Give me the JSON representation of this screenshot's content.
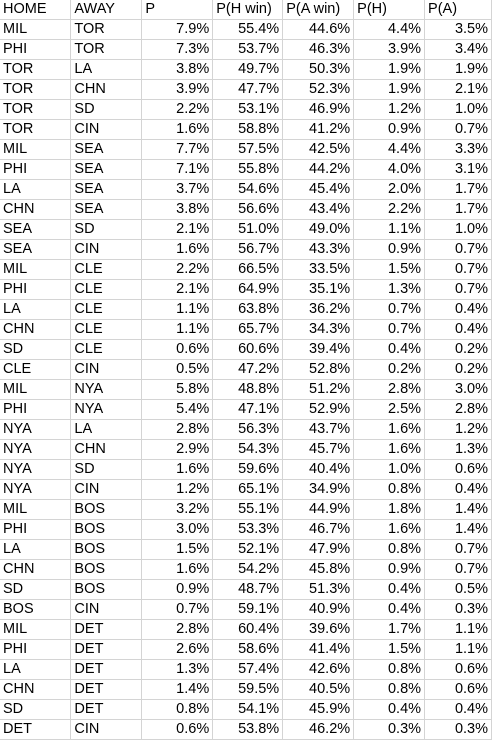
{
  "headers": [
    "HOME",
    "AWAY",
    "P",
    "P(H win)",
    "P(A win)",
    "P(H)",
    "P(A)"
  ],
  "rows": [
    [
      "MIL",
      "TOR",
      "7.9%",
      "55.4%",
      "44.6%",
      "4.4%",
      "3.5%"
    ],
    [
      "PHI",
      "TOR",
      "7.3%",
      "53.7%",
      "46.3%",
      "3.9%",
      "3.4%"
    ],
    [
      "TOR",
      "LA",
      "3.8%",
      "49.7%",
      "50.3%",
      "1.9%",
      "1.9%"
    ],
    [
      "TOR",
      "CHN",
      "3.9%",
      "47.7%",
      "52.3%",
      "1.9%",
      "2.1%"
    ],
    [
      "TOR",
      "SD",
      "2.2%",
      "53.1%",
      "46.9%",
      "1.2%",
      "1.0%"
    ],
    [
      "TOR",
      "CIN",
      "1.6%",
      "58.8%",
      "41.2%",
      "0.9%",
      "0.7%"
    ],
    [
      "MIL",
      "SEA",
      "7.7%",
      "57.5%",
      "42.5%",
      "4.4%",
      "3.3%"
    ],
    [
      "PHI",
      "SEA",
      "7.1%",
      "55.8%",
      "44.2%",
      "4.0%",
      "3.1%"
    ],
    [
      "LA",
      "SEA",
      "3.7%",
      "54.6%",
      "45.4%",
      "2.0%",
      "1.7%"
    ],
    [
      "CHN",
      "SEA",
      "3.8%",
      "56.6%",
      "43.4%",
      "2.2%",
      "1.7%"
    ],
    [
      "SEA",
      "SD",
      "2.1%",
      "51.0%",
      "49.0%",
      "1.1%",
      "1.0%"
    ],
    [
      "SEA",
      "CIN",
      "1.6%",
      "56.7%",
      "43.3%",
      "0.9%",
      "0.7%"
    ],
    [
      "MIL",
      "CLE",
      "2.2%",
      "66.5%",
      "33.5%",
      "1.5%",
      "0.7%"
    ],
    [
      "PHI",
      "CLE",
      "2.1%",
      "64.9%",
      "35.1%",
      "1.3%",
      "0.7%"
    ],
    [
      "LA",
      "CLE",
      "1.1%",
      "63.8%",
      "36.2%",
      "0.7%",
      "0.4%"
    ],
    [
      "CHN",
      "CLE",
      "1.1%",
      "65.7%",
      "34.3%",
      "0.7%",
      "0.4%"
    ],
    [
      "SD",
      "CLE",
      "0.6%",
      "60.6%",
      "39.4%",
      "0.4%",
      "0.2%"
    ],
    [
      "CLE",
      "CIN",
      "0.5%",
      "47.2%",
      "52.8%",
      "0.2%",
      "0.2%"
    ],
    [
      "MIL",
      "NYA",
      "5.8%",
      "48.8%",
      "51.2%",
      "2.8%",
      "3.0%"
    ],
    [
      "PHI",
      "NYA",
      "5.4%",
      "47.1%",
      "52.9%",
      "2.5%",
      "2.8%"
    ],
    [
      "NYA",
      "LA",
      "2.8%",
      "56.3%",
      "43.7%",
      "1.6%",
      "1.2%"
    ],
    [
      "NYA",
      "CHN",
      "2.9%",
      "54.3%",
      "45.7%",
      "1.6%",
      "1.3%"
    ],
    [
      "NYA",
      "SD",
      "1.6%",
      "59.6%",
      "40.4%",
      "1.0%",
      "0.6%"
    ],
    [
      "NYA",
      "CIN",
      "1.2%",
      "65.1%",
      "34.9%",
      "0.8%",
      "0.4%"
    ],
    [
      "MIL",
      "BOS",
      "3.2%",
      "55.1%",
      "44.9%",
      "1.8%",
      "1.4%"
    ],
    [
      "PHI",
      "BOS",
      "3.0%",
      "53.3%",
      "46.7%",
      "1.6%",
      "1.4%"
    ],
    [
      "LA",
      "BOS",
      "1.5%",
      "52.1%",
      "47.9%",
      "0.8%",
      "0.7%"
    ],
    [
      "CHN",
      "BOS",
      "1.6%",
      "54.2%",
      "45.8%",
      "0.9%",
      "0.7%"
    ],
    [
      "SD",
      "BOS",
      "0.9%",
      "48.7%",
      "51.3%",
      "0.4%",
      "0.5%"
    ],
    [
      "BOS",
      "CIN",
      "0.7%",
      "59.1%",
      "40.9%",
      "0.4%",
      "0.3%"
    ],
    [
      "MIL",
      "DET",
      "2.8%",
      "60.4%",
      "39.6%",
      "1.7%",
      "1.1%"
    ],
    [
      "PHI",
      "DET",
      "2.6%",
      "58.6%",
      "41.4%",
      "1.5%",
      "1.1%"
    ],
    [
      "LA",
      "DET",
      "1.3%",
      "57.4%",
      "42.6%",
      "0.8%",
      "0.6%"
    ],
    [
      "CHN",
      "DET",
      "1.4%",
      "59.5%",
      "40.5%",
      "0.8%",
      "0.6%"
    ],
    [
      "SD",
      "DET",
      "0.8%",
      "54.1%",
      "45.9%",
      "0.4%",
      "0.4%"
    ],
    [
      "DET",
      "CIN",
      "0.6%",
      "53.8%",
      "46.2%",
      "0.3%",
      "0.3%"
    ]
  ]
}
